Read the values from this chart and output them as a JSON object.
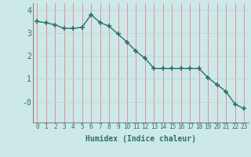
{
  "x": [
    0,
    1,
    2,
    3,
    4,
    5,
    6,
    7,
    8,
    9,
    10,
    11,
    12,
    13,
    14,
    15,
    16,
    17,
    18,
    19,
    20,
    21,
    22,
    23
  ],
  "y": [
    3.5,
    3.45,
    3.35,
    3.2,
    3.2,
    3.25,
    3.8,
    3.45,
    3.3,
    2.95,
    2.6,
    2.2,
    1.9,
    1.45,
    1.45,
    1.45,
    1.45,
    1.45,
    1.45,
    1.05,
    0.75,
    0.45,
    -0.1,
    -0.3
  ],
  "line_color": "#2d7068",
  "marker_color": "#2d7068",
  "bg_color": "#cce8e8",
  "grid_color_v": "#f08080",
  "grid_color_h": "#b8d8d8",
  "xlabel": "Humidex (Indice chaleur)",
  "ylim": [
    -0.9,
    4.3
  ],
  "xlim": [
    -0.5,
    23.5
  ],
  "ytick_positions": [
    4,
    3,
    2,
    1,
    0
  ],
  "ytick_labels": [
    "4",
    "3",
    "2",
    "1",
    "-0"
  ],
  "xtick_labels": [
    "0",
    "1",
    "2",
    "3",
    "4",
    "5",
    "6",
    "7",
    "8",
    "9",
    "10",
    "11",
    "12",
    "13",
    "14",
    "15",
    "16",
    "17",
    "18",
    "19",
    "20",
    "21",
    "22",
    "23"
  ]
}
